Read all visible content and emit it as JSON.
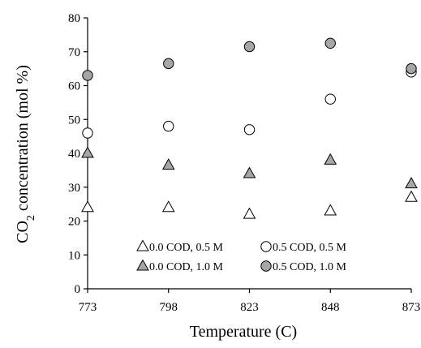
{
  "chart_data": {
    "type": "scatter",
    "title": "",
    "xlabel": "Temperature (C)",
    "ylabel_main": "CO",
    "ylabel_sub": "2",
    "ylabel_rest": " concentration (mol %)",
    "x": [
      773,
      798,
      823,
      848,
      873
    ],
    "xlim": [
      773,
      873
    ],
    "ylim": [
      0,
      80
    ],
    "yticks": [
      0,
      10,
      20,
      30,
      40,
      50,
      60,
      70,
      80
    ],
    "grid": false,
    "legend_position": "bottom-center",
    "series": [
      {
        "name": "0.0 COD, 0.5 M",
        "marker": "triangle",
        "fill": "#ffffff",
        "values": [
          24,
          24,
          22,
          23,
          27
        ]
      },
      {
        "name": "0.5 COD, 0.5 M",
        "marker": "circle",
        "fill": "#ffffff",
        "values": [
          46,
          48,
          47,
          56,
          64
        ]
      },
      {
        "name": "0.0 COD, 1.0 M",
        "marker": "triangle",
        "fill": "#a6a6a6",
        "values": [
          40,
          36.5,
          34,
          38,
          31
        ]
      },
      {
        "name": "0.5 COD, 1.0 M",
        "marker": "circle",
        "fill": "#a6a6a6",
        "values": [
          63,
          66.5,
          71.5,
          72.5,
          65
        ]
      }
    ]
  }
}
